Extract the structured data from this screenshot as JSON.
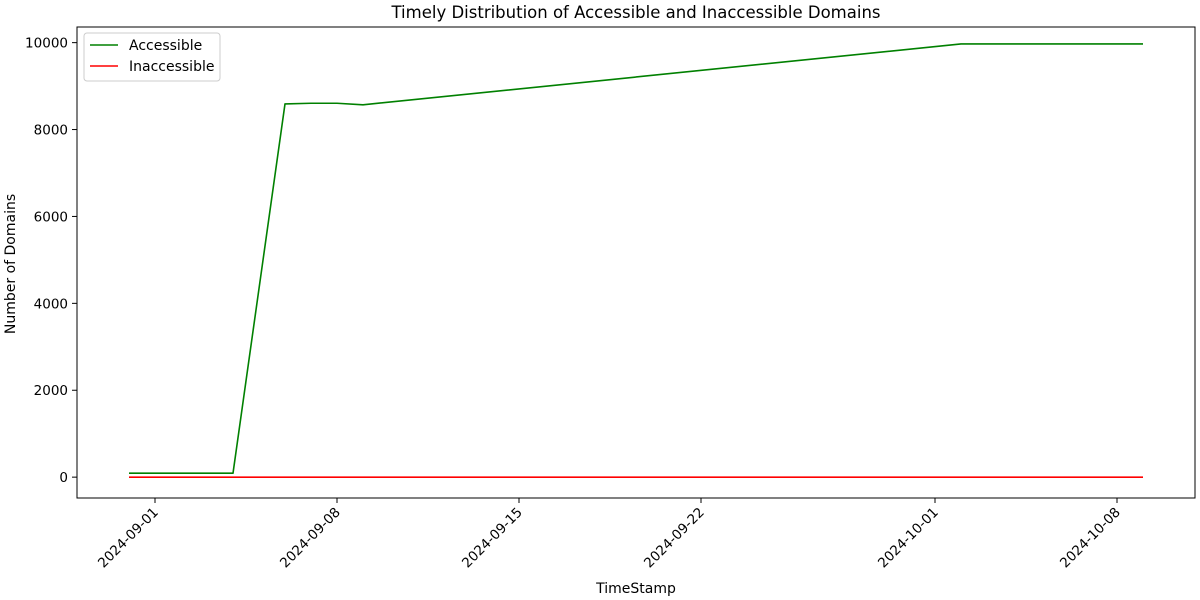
{
  "chart_data": {
    "type": "line",
    "title": "Timely Distribution of Accessible and Inaccessible Domains",
    "xlabel": "TimeStamp",
    "ylabel": "Number of Domains",
    "x_ticks": [
      "2024-09-01",
      "2024-09-08",
      "2024-09-15",
      "2024-09-22",
      "2024-10-01",
      "2024-10-08"
    ],
    "y_ticks": [
      0,
      2000,
      4000,
      6000,
      8000,
      10000
    ],
    "xlim": [
      "2024-08-29",
      "2024-10-11"
    ],
    "ylim": [
      -480,
      10360
    ],
    "grid": false,
    "legend_position": "top-left",
    "series": [
      {
        "name": "Accessible",
        "color": "#008000",
        "points": [
          {
            "x": "2024-08-31",
            "y": 90
          },
          {
            "x": "2024-09-01",
            "y": 90
          },
          {
            "x": "2024-09-04",
            "y": 90
          },
          {
            "x": "2024-09-06",
            "y": 8590
          },
          {
            "x": "2024-09-07",
            "y": 8605
          },
          {
            "x": "2024-09-08",
            "y": 8605
          },
          {
            "x": "2024-09-09",
            "y": 8570
          },
          {
            "x": "2024-10-02",
            "y": 9970
          },
          {
            "x": "2024-10-09",
            "y": 9970
          }
        ]
      },
      {
        "name": "Inaccessible",
        "color": "#ff0000",
        "points": [
          {
            "x": "2024-08-31",
            "y": 0
          },
          {
            "x": "2024-10-09",
            "y": 0
          }
        ]
      }
    ]
  }
}
